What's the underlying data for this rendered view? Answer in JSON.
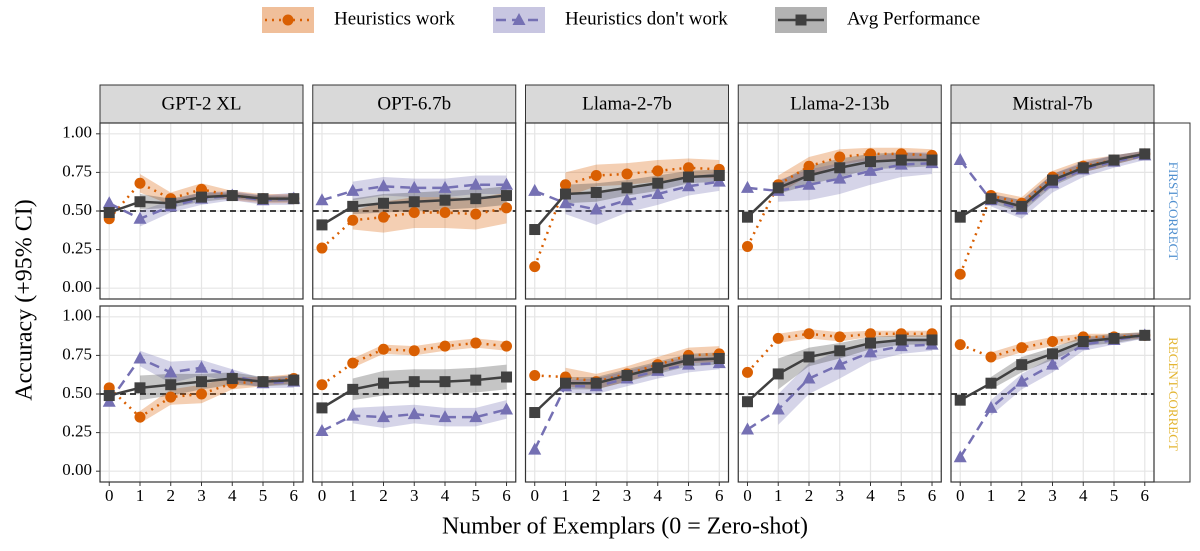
{
  "chart_data": {
    "type": "line",
    "x_label": "Number of Exemplars (0 = Zero-shot)",
    "y_label": "Accuracy (+95% CI)",
    "columns": [
      "GPT-2 XL",
      "OPT-6.7b",
      "Llama-2-7b",
      "Llama-2-13b",
      "Mistral-7b"
    ],
    "rows": [
      "FIRST-CORRECT",
      "RECENT-CORRECT"
    ],
    "row_colors": [
      "#4f8fcf",
      "#e3b532"
    ],
    "legend": [
      {
        "name": "Heuristics work",
        "color": "#d95f02",
        "marker": "circle",
        "dash": "dotted"
      },
      {
        "name": "Heuristics don't work",
        "color": "#7570b3",
        "marker": "triangle",
        "dash": "dashed"
      },
      {
        "name": "Avg Performance",
        "color": "#404040",
        "marker": "square",
        "dash": "solid"
      }
    ],
    "x": [
      0,
      1,
      2,
      3,
      4,
      5,
      6
    ],
    "xlim": [
      -0.3,
      6.3
    ],
    "xticks": [
      0,
      1,
      2,
      3,
      4,
      5,
      6
    ],
    "ylim": [
      -0.07,
      1.07
    ],
    "yticks": [
      {
        "value": 0,
        "label": "0.00"
      },
      {
        "value": 0.25,
        "label": "0.25"
      },
      {
        "value": 0.5,
        "label": "0.50"
      },
      {
        "value": 0.75,
        "label": "0.75"
      },
      {
        "value": 1,
        "label": "1.00"
      }
    ],
    "hline": 0.5,
    "grid": true,
    "panels": [
      {
        "series": [
          {
            "values": [
              0.45,
              0.68,
              0.58,
              0.64,
              0.6,
              0.58,
              0.58
            ],
            "ci": [
              null,
              0.06,
              0.04,
              0.04,
              0.03,
              0.03,
              0.03
            ]
          },
          {
            "values": [
              0.55,
              0.45,
              0.53,
              0.58,
              0.6,
              0.57,
              0.58
            ],
            "ci": [
              null,
              0.05,
              0.04,
              0.04,
              0.03,
              0.03,
              0.04
            ]
          },
          {
            "values": [
              0.49,
              0.56,
              0.55,
              0.59,
              0.6,
              0.58,
              0.58
            ],
            "ci": [
              null,
              0.05,
              0.03,
              0.03,
              0.02,
              0.02,
              0.02
            ]
          }
        ]
      },
      {
        "series": [
          {
            "values": [
              0.26,
              0.44,
              0.46,
              0.49,
              0.49,
              0.48,
              0.52
            ],
            "ci": [
              null,
              0.06,
              0.1,
              0.1,
              0.1,
              0.1,
              0.1
            ]
          },
          {
            "values": [
              0.57,
              0.63,
              0.66,
              0.65,
              0.65,
              0.67,
              0.67
            ],
            "ci": [
              null,
              0.06,
              0.06,
              0.06,
              0.06,
              0.06,
              0.06
            ]
          },
          {
            "values": [
              0.41,
              0.53,
              0.55,
              0.56,
              0.57,
              0.58,
              0.6
            ],
            "ci": [
              null,
              0.05,
              0.06,
              0.06,
              0.06,
              0.06,
              0.06
            ]
          }
        ]
      },
      {
        "series": [
          {
            "values": [
              0.14,
              0.67,
              0.73,
              0.74,
              0.76,
              0.78,
              0.77
            ],
            "ci": [
              null,
              0.08,
              0.07,
              0.07,
              0.07,
              0.06,
              0.06
            ]
          },
          {
            "values": [
              0.63,
              0.55,
              0.51,
              0.57,
              0.61,
              0.66,
              0.69
            ],
            "ci": [
              null,
              0.07,
              0.1,
              0.08,
              0.07,
              0.06,
              0.06
            ]
          },
          {
            "values": [
              0.38,
              0.61,
              0.62,
              0.65,
              0.68,
              0.72,
              0.73
            ],
            "ci": [
              null,
              0.06,
              0.06,
              0.05,
              0.05,
              0.04,
              0.04
            ]
          }
        ]
      },
      {
        "series": [
          {
            "values": [
              0.27,
              0.67,
              0.79,
              0.85,
              0.87,
              0.87,
              0.86
            ],
            "ci": [
              null,
              0.06,
              0.06,
              0.05,
              0.04,
              0.04,
              0.04
            ]
          },
          {
            "values": [
              0.65,
              0.63,
              0.67,
              0.71,
              0.76,
              0.8,
              0.81
            ],
            "ci": [
              null,
              0.07,
              0.1,
              0.1,
              0.09,
              0.08,
              0.07
            ]
          },
          {
            "values": [
              0.46,
              0.65,
              0.73,
              0.78,
              0.82,
              0.83,
              0.83
            ],
            "ci": [
              null,
              0.04,
              0.06,
              0.06,
              0.05,
              0.05,
              0.04
            ]
          }
        ]
      },
      {
        "series": [
          {
            "values": [
              0.09,
              0.6,
              0.55,
              0.72,
              0.79,
              0.83,
              0.87
            ],
            "ci": [
              null,
              0.03,
              0.04,
              0.04,
              0.04,
              0.03,
              0.02
            ]
          },
          {
            "values": [
              0.83,
              0.57,
              0.51,
              0.68,
              0.77,
              0.82,
              0.86
            ],
            "ci": [
              null,
              0.04,
              0.06,
              0.06,
              0.05,
              0.04,
              0.03
            ]
          },
          {
            "values": [
              0.46,
              0.58,
              0.53,
              0.7,
              0.78,
              0.83,
              0.87
            ],
            "ci": [
              null,
              0.03,
              0.04,
              0.04,
              0.03,
              0.03,
              0.02
            ]
          }
        ]
      },
      {
        "series": [
          {
            "values": [
              0.54,
              0.35,
              0.48,
              0.5,
              0.57,
              0.58,
              0.6
            ],
            "ci": [
              null,
              0.04,
              0.05,
              0.06,
              0.04,
              0.03,
              0.03
            ]
          },
          {
            "values": [
              0.45,
              0.73,
              0.64,
              0.67,
              0.62,
              0.57,
              0.58
            ],
            "ci": [
              null,
              0.05,
              0.07,
              0.05,
              0.04,
              0.03,
              0.04
            ]
          },
          {
            "values": [
              0.49,
              0.54,
              0.56,
              0.58,
              0.6,
              0.58,
              0.59
            ],
            "ci": [
              null,
              0.08,
              0.07,
              0.05,
              0.04,
              0.03,
              0.03
            ]
          }
        ]
      },
      {
        "series": [
          {
            "values": [
              0.56,
              0.7,
              0.79,
              0.78,
              0.81,
              0.83,
              0.81
            ],
            "ci": [
              null,
              0.03,
              0.03,
              0.03,
              0.03,
              0.03,
              0.03
            ]
          },
          {
            "values": [
              0.26,
              0.36,
              0.35,
              0.37,
              0.35,
              0.35,
              0.4
            ],
            "ci": [
              null,
              0.05,
              0.07,
              0.06,
              0.06,
              0.06,
              0.06
            ]
          },
          {
            "values": [
              0.41,
              0.53,
              0.57,
              0.58,
              0.58,
              0.59,
              0.61
            ],
            "ci": [
              null,
              0.07,
              0.08,
              0.08,
              0.08,
              0.08,
              0.08
            ]
          }
        ]
      },
      {
        "series": [
          {
            "values": [
              0.62,
              0.61,
              0.58,
              0.63,
              0.69,
              0.75,
              0.76
            ],
            "ci": [
              null,
              0.06,
              0.05,
              0.05,
              0.05,
              0.05,
              0.05
            ]
          },
          {
            "values": [
              0.14,
              0.55,
              0.55,
              0.6,
              0.65,
              0.69,
              0.7
            ],
            "ci": [
              null,
              0.04,
              0.05,
              0.05,
              0.05,
              0.05,
              0.04
            ]
          },
          {
            "values": [
              0.38,
              0.57,
              0.57,
              0.62,
              0.67,
              0.72,
              0.73
            ],
            "ci": [
              null,
              0.04,
              0.04,
              0.04,
              0.04,
              0.04,
              0.04
            ]
          }
        ]
      },
      {
        "series": [
          {
            "values": [
              0.64,
              0.86,
              0.89,
              0.87,
              0.89,
              0.89,
              0.89
            ],
            "ci": [
              null,
              0.03,
              0.03,
              0.03,
              0.02,
              0.02,
              0.02
            ]
          },
          {
            "values": [
              0.27,
              0.4,
              0.6,
              0.69,
              0.77,
              0.81,
              0.82
            ],
            "ci": [
              null,
              0.1,
              0.1,
              0.09,
              0.06,
              0.05,
              0.04
            ]
          },
          {
            "values": [
              0.45,
              0.63,
              0.74,
              0.78,
              0.83,
              0.85,
              0.85
            ],
            "ci": [
              null,
              0.1,
              0.06,
              0.05,
              0.04,
              0.03,
              0.03
            ]
          }
        ]
      },
      {
        "series": [
          {
            "values": [
              0.82,
              0.74,
              0.8,
              0.84,
              0.87,
              0.87,
              0.88
            ],
            "ci": [
              null,
              0.03,
              0.03,
              0.03,
              0.02,
              0.02,
              0.02
            ]
          },
          {
            "values": [
              0.09,
              0.41,
              0.58,
              0.69,
              0.82,
              0.85,
              0.88
            ],
            "ci": [
              null,
              0.05,
              0.05,
              0.05,
              0.04,
              0.03,
              0.02
            ]
          },
          {
            "values": [
              0.46,
              0.57,
              0.69,
              0.76,
              0.84,
              0.86,
              0.88
            ],
            "ci": [
              null,
              0.04,
              0.05,
              0.04,
              0.03,
              0.03,
              0.02
            ]
          }
        ]
      }
    ]
  }
}
